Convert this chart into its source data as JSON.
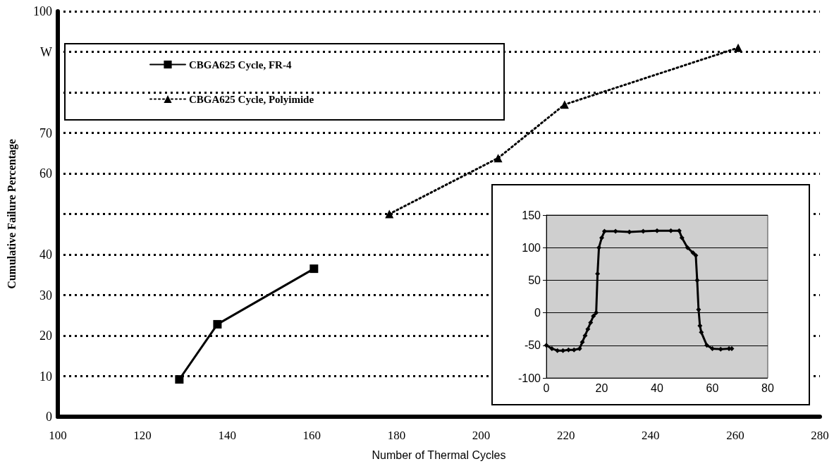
{
  "chart_data": [
    {
      "type": "line",
      "xlabel": "Number of Thermal Cycles",
      "ylabel": "Cumulative Failure Percentage",
      "xlim": [
        100,
        280
      ],
      "xticks": [
        100,
        120,
        140,
        160,
        180,
        200,
        220,
        240,
        260,
        280
      ],
      "ylim": [
        0,
        100
      ],
      "yticks": [
        0,
        10,
        20,
        30,
        40,
        {
          "value": 50,
          "label": null
        },
        60,
        70,
        {
          "value": 80,
          "label": null
        },
        {
          "value": 90,
          "label": "W"
        },
        100
      ],
      "grid": "y",
      "legend": "top left",
      "series": [
        {
          "name": "CBGA625 Cycle, FR-4",
          "color": "#000000",
          "marker": "square",
          "line_style": "solid",
          "x": [
            128.7,
            137.7,
            160.5
          ],
          "values": [
            9.2,
            22.8,
            36.5
          ]
        },
        {
          "name": "CBGA625 Cycle, Polyimide",
          "color": "#000000",
          "marker": "triangle",
          "line_style": "dotted",
          "x": [
            178.3,
            204,
            219.7,
            260.7
          ],
          "values": [
            50,
            63.8,
            77,
            91
          ]
        }
      ]
    },
    {
      "type": "line",
      "xlim": [
        0,
        80
      ],
      "xticks": [
        0,
        20,
        40,
        60,
        80
      ],
      "ylim": [
        -100,
        150
      ],
      "yticks": [
        -100,
        -50,
        0,
        50,
        100,
        150
      ],
      "grid": "y",
      "marker": "diamond",
      "line_style": "solid",
      "series": [
        {
          "color": "#000000",
          "x": [
            0,
            2,
            4,
            6,
            8,
            10,
            12,
            13,
            14,
            15,
            16,
            17,
            18,
            18.5,
            19,
            20,
            21,
            25,
            30,
            35,
            40,
            45,
            48,
            49,
            51,
            53,
            54,
            54.5,
            55,
            55.5,
            56,
            58,
            60,
            63,
            66,
            67
          ],
          "values": [
            -50,
            -55,
            -58,
            -58,
            -57,
            -57,
            -55,
            -45,
            -35,
            -25,
            -15,
            -5,
            0,
            60,
            100,
            115,
            125,
            125,
            124,
            125,
            126,
            126,
            126,
            115,
            100,
            92,
            88,
            50,
            5,
            -20,
            -30,
            -50,
            -55,
            -56,
            -55,
            -55
          ]
        }
      ]
    }
  ]
}
